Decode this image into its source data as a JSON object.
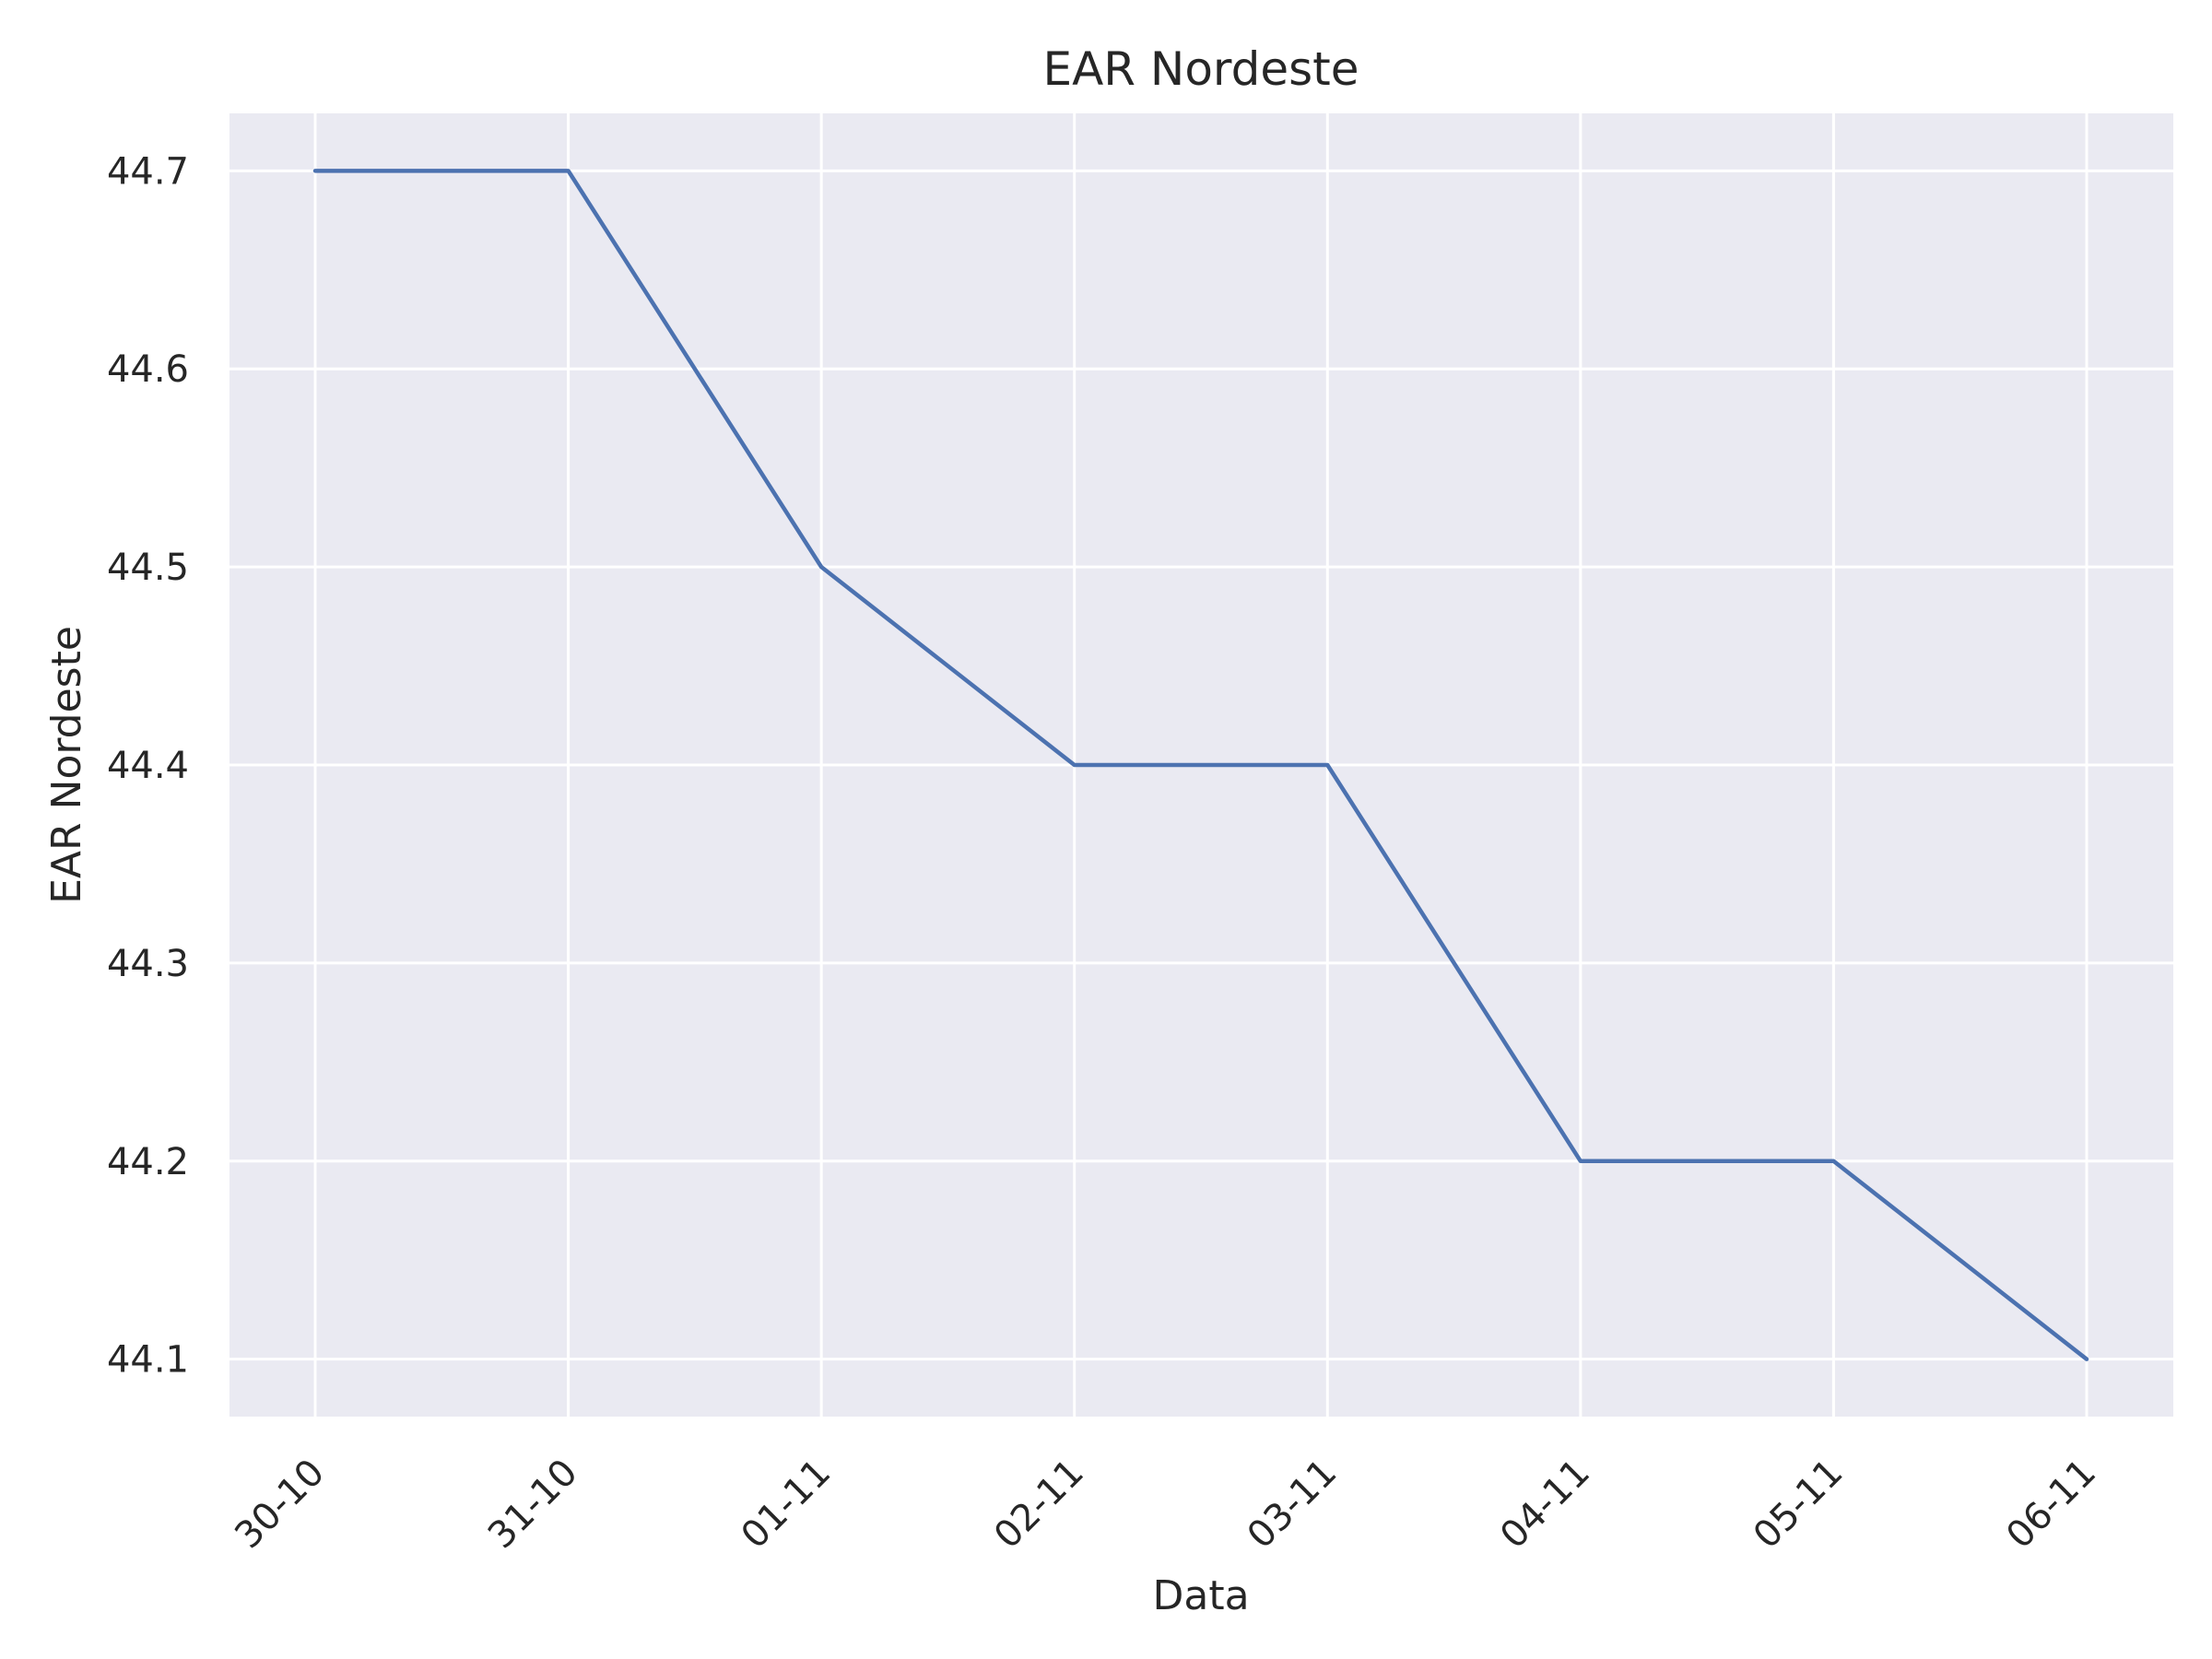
{
  "chart_data": {
    "type": "line",
    "title": "EAR Nordeste",
    "xlabel": "Data",
    "ylabel": "EAR Nordeste",
    "categories": [
      "30-10",
      "31-10",
      "01-11",
      "02-11",
      "03-11",
      "04-11",
      "05-11",
      "06-11"
    ],
    "series": [
      {
        "values": [
          44.7,
          44.7,
          44.5,
          44.4,
          44.4,
          44.2,
          44.2,
          44.1
        ],
        "color": "#4c72b0"
      }
    ],
    "yticks": [
      "44.1",
      "44.2",
      "44.3",
      "44.4",
      "44.5",
      "44.6",
      "44.7"
    ],
    "ylim": [
      44.071,
      44.729
    ],
    "grid": true,
    "background_color": "#eaeaf2",
    "grid_color": "#ffffff",
    "legend": "none"
  }
}
